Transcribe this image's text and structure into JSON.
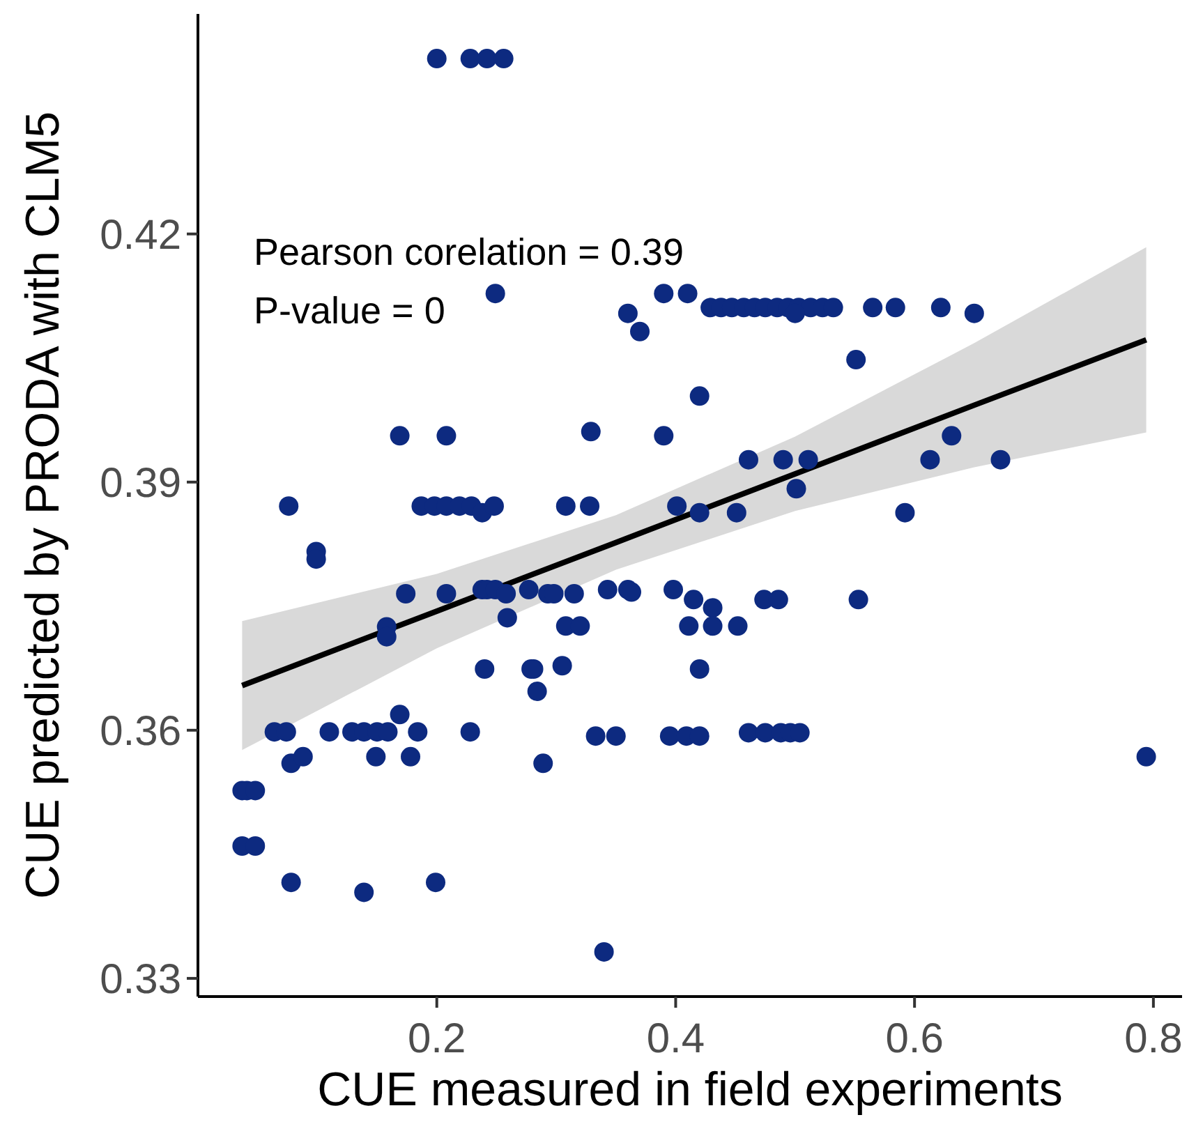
{
  "chart_data": {
    "type": "scatter",
    "xlabel": "CUE measured in field experiments",
    "ylabel": "CUE predicted by PRODA with CLM5",
    "xlim": [
      0,
      0.824
    ],
    "ylim": [
      0.3278,
      0.4466
    ],
    "xticks": [
      0.2,
      0.4,
      0.6,
      0.8
    ],
    "yticks": [
      0.33,
      0.36,
      0.39,
      0.42
    ],
    "grid": false,
    "marker": "circle",
    "annotations": [
      "Pearson corelation = 0.39",
      "P-value = 0"
    ],
    "series": [
      {
        "color": "#0d2a80",
        "x": [
          0.2,
          0.228,
          0.242,
          0.256,
          0.249,
          0.39,
          0.41,
          0.36,
          0.37,
          0.429,
          0.438,
          0.447,
          0.457,
          0.466,
          0.475,
          0.485,
          0.494,
          0.503,
          0.513,
          0.523,
          0.532,
          0.5,
          0.565,
          0.584,
          0.622,
          0.65,
          0.551,
          0.42,
          0.169,
          0.208,
          0.329,
          0.39,
          0.461,
          0.49,
          0.511,
          0.501,
          0.076,
          0.187,
          0.198,
          0.208,
          0.219,
          0.229,
          0.238,
          0.248,
          0.308,
          0.328,
          0.401,
          0.42,
          0.451,
          0.613,
          0.631,
          0.672,
          0.592,
          0.099,
          0.099,
          0.174,
          0.208,
          0.238,
          0.242,
          0.249,
          0.258,
          0.277,
          0.293,
          0.298,
          0.315,
          0.343,
          0.36,
          0.363,
          0.398,
          0.415,
          0.431,
          0.474,
          0.486,
          0.553,
          0.158,
          0.158,
          0.259,
          0.308,
          0.32,
          0.411,
          0.431,
          0.452,
          0.281,
          0.305,
          0.42,
          0.284,
          0.24,
          0.279,
          0.169,
          0.064,
          0.074,
          0.11,
          0.129,
          0.139,
          0.15,
          0.159,
          0.184,
          0.228,
          0.333,
          0.35,
          0.395,
          0.409,
          0.42,
          0.461,
          0.475,
          0.488,
          0.496,
          0.504,
          0.078,
          0.088,
          0.149,
          0.178,
          0.289,
          0.037,
          0.041,
          0.048,
          0.037,
          0.048,
          0.078,
          0.139,
          0.199,
          0.34,
          0.794
        ],
        "values": [
          0.4412,
          0.4412,
          0.4412,
          0.4412,
          0.4128,
          0.4128,
          0.4128,
          0.4104,
          0.4082,
          0.4111,
          0.4111,
          0.4111,
          0.4111,
          0.4111,
          0.4111,
          0.4111,
          0.4111,
          0.4111,
          0.4111,
          0.4111,
          0.4111,
          0.4104,
          0.4111,
          0.4111,
          0.4111,
          0.4104,
          0.4048,
          0.4004,
          0.3956,
          0.3956,
          0.3961,
          0.3956,
          0.3927,
          0.3927,
          0.3927,
          0.3892,
          0.3871,
          0.3871,
          0.3871,
          0.3871,
          0.3871,
          0.3871,
          0.3863,
          0.3871,
          0.3871,
          0.3871,
          0.3871,
          0.3863,
          0.3863,
          0.3927,
          0.3956,
          0.3927,
          0.3863,
          0.3816,
          0.3807,
          0.3765,
          0.3765,
          0.377,
          0.377,
          0.377,
          0.3765,
          0.377,
          0.3765,
          0.3765,
          0.3765,
          0.377,
          0.377,
          0.3767,
          0.377,
          0.3758,
          0.3748,
          0.3758,
          0.3758,
          0.3758,
          0.3725,
          0.3713,
          0.3736,
          0.3726,
          0.3726,
          0.3726,
          0.3726,
          0.3726,
          0.3674,
          0.3678,
          0.3674,
          0.3647,
          0.3674,
          0.3674,
          0.3619,
          0.3598,
          0.3598,
          0.3598,
          0.3598,
          0.3598,
          0.3598,
          0.3598,
          0.3598,
          0.3598,
          0.3593,
          0.3593,
          0.3593,
          0.3593,
          0.3593,
          0.3597,
          0.3597,
          0.3597,
          0.3597,
          0.3597,
          0.356,
          0.3568,
          0.3568,
          0.3568,
          0.356,
          0.3527,
          0.3527,
          0.3527,
          0.346,
          0.346,
          0.3416,
          0.3404,
          0.3416,
          0.3332,
          0.3568
        ]
      },
      {
        "type": "line",
        "color": "#000000",
        "marker": "none",
        "x": [
          0.037,
          0.2,
          0.35,
          0.5,
          0.65,
          0.794
        ],
        "values": [
          0.3654,
          0.3744,
          0.3827,
          0.391,
          0.3993,
          0.4072
        ],
        "lower": [
          0.3576,
          0.3699,
          0.3794,
          0.3865,
          0.3918,
          0.396
        ],
        "upper": [
          0.3732,
          0.3789,
          0.386,
          0.3955,
          0.4068,
          0.4184
        ]
      }
    ]
  }
}
